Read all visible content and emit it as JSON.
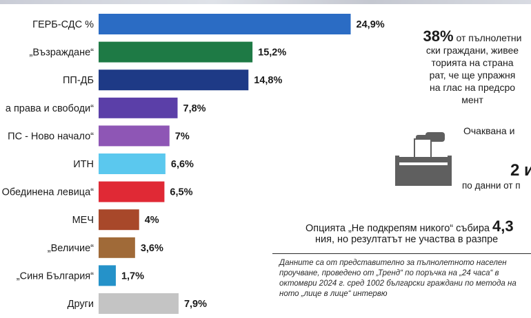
{
  "chart_data": {
    "type": "bar",
    "orientation": "horizontal",
    "categories": [
      "ГЕРБ-СДС %",
      "„Възраждане“",
      "ПП-ДБ",
      "а права и свободи“",
      "ПС - Ново начало“",
      "ИТН",
      "Обединена левица“",
      "МЕЧ",
      "„Величие“",
      "„Синя България“",
      "Други"
    ],
    "values": [
      24.9,
      15.2,
      14.8,
      7.8,
      7,
      6.6,
      6.5,
      4,
      3.6,
      1.7,
      7.9
    ],
    "value_labels": [
      "24,9%",
      "15,2%",
      "14,8%",
      "7,8%",
      "7%",
      "6,6%",
      "6,5%",
      "4%",
      "3,6%",
      "1,7%",
      "7,9%"
    ],
    "colors": [
      "#2b6cc4",
      "#1e7a45",
      "#1e3a86",
      "#5b3fa8",
      "#8e56b5",
      "#5bc8ee",
      "#e02935",
      "#a8482a",
      "#a06a38",
      "#2592c9",
      "#c4c4c4"
    ],
    "xlim": [
      0,
      25
    ]
  },
  "stats": {
    "percent": "38%",
    "line1_rest": " от пълнолетни",
    "line2": "ски граждани, живее",
    "line3": "торията на страна",
    "line4": "рат, че ще упражня",
    "line5": "на глас на предсро",
    "line6": "мент"
  },
  "expected": {
    "text": "Очаквана и"
  },
  "turnout": {
    "value": "2 и",
    "source": "по данни от п"
  },
  "option": {
    "line1_prefix": "Опцията „Не подкрепям никого“ събира ",
    "line1_num": "4,3",
    "line2": "ния, но резултатът не участва в разпре"
  },
  "footnote": {
    "line1": "Данните са от представително за пълнолетното населен",
    "line2": "проучване, проведено от „Тренд“ по поръчка на „24 часа“ в",
    "line3": "октомври 2024 г. сред 1002 български граждани по метода на",
    "line4": "ното „лице в лице“ интервю"
  }
}
